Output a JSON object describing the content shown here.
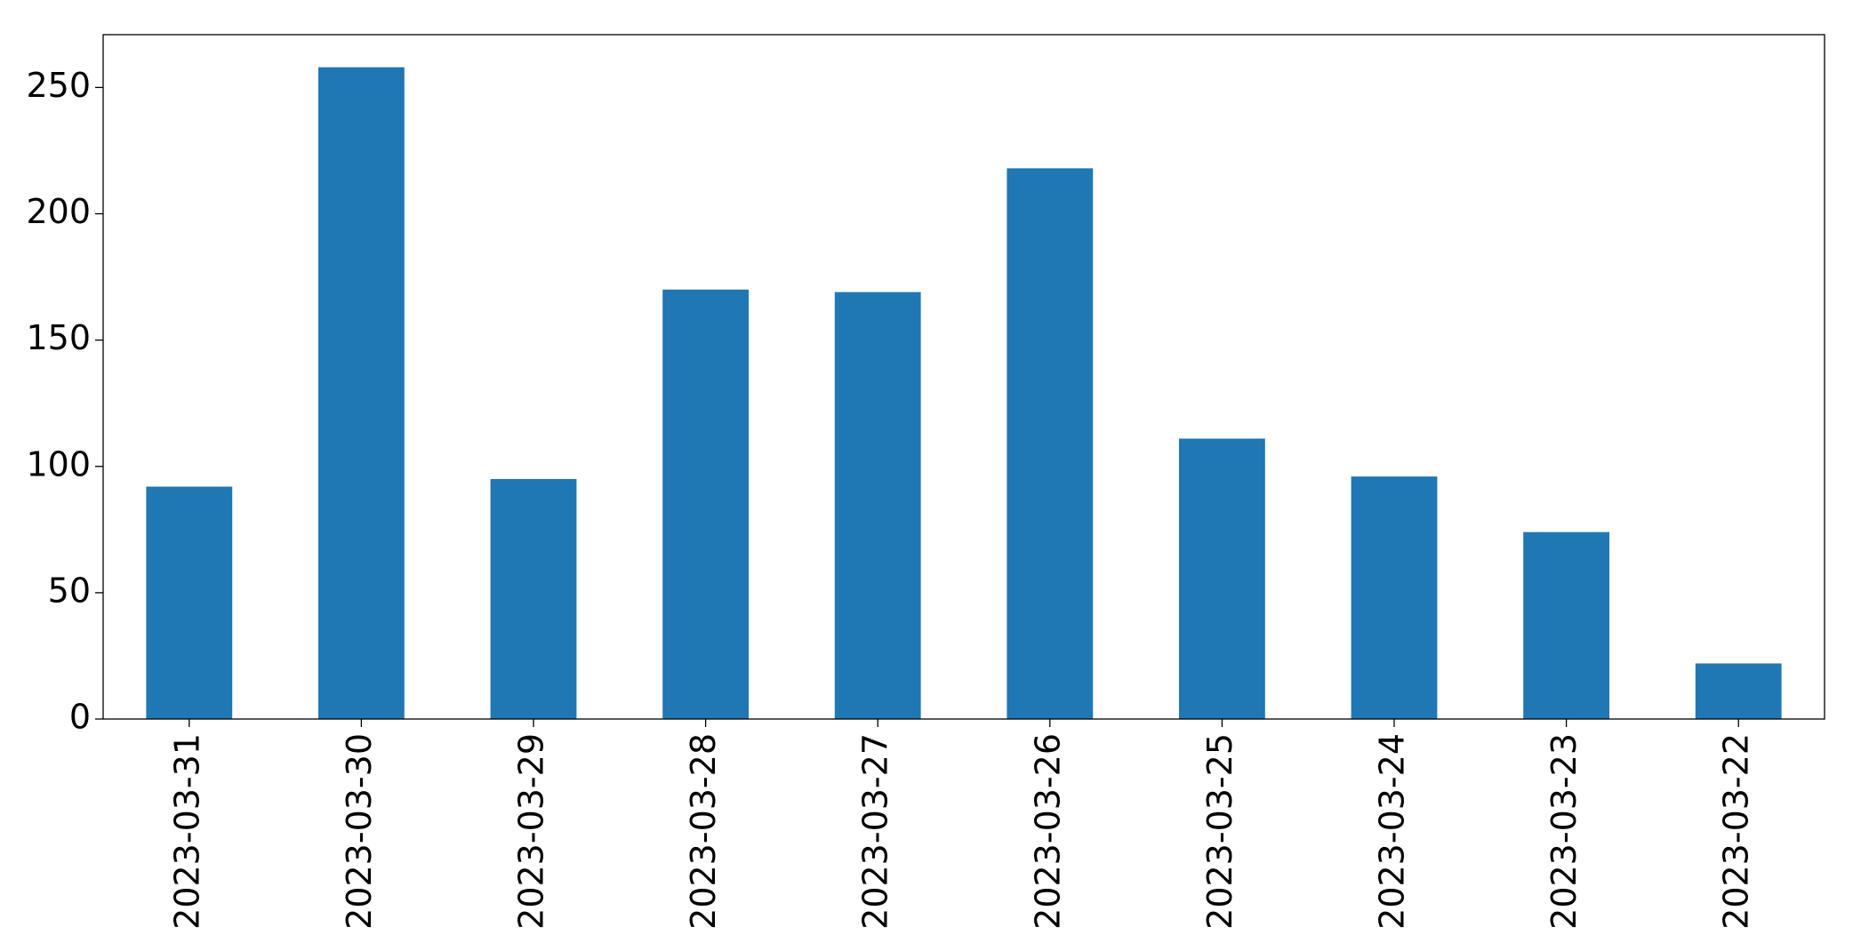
{
  "chart_data": {
    "type": "bar",
    "categories": [
      "2023-03-31",
      "2023-03-30",
      "2023-03-29",
      "2023-03-28",
      "2023-03-27",
      "2023-03-26",
      "2023-03-25",
      "2023-03-24",
      "2023-03-23",
      "2023-03-22"
    ],
    "values": [
      92,
      258,
      95,
      170,
      169,
      218,
      111,
      96,
      74,
      22
    ],
    "color": "#1f77b4",
    "ylim": [
      0,
      270.9
    ],
    "yticks": [
      0,
      50,
      100,
      150,
      200,
      250
    ],
    "grid": false
  }
}
